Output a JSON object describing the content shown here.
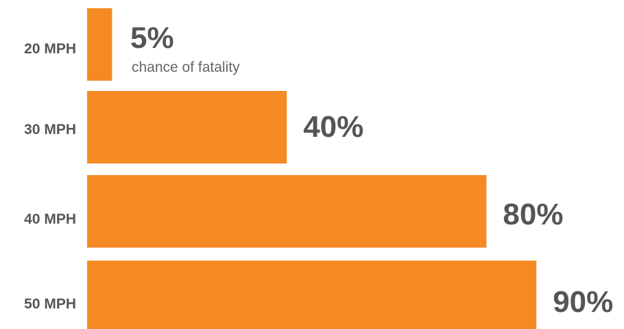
{
  "chart_data": {
    "type": "bar",
    "orientation": "horizontal",
    "categories": [
      "20 MPH",
      "30 MPH",
      "40 MPH",
      "50 MPH"
    ],
    "values": [
      5,
      40,
      80,
      90
    ],
    "value_labels": [
      "5%",
      "40%",
      "80%",
      "90%"
    ],
    "annotations": [
      {
        "category": "20 MPH",
        "text": "chance of fatality"
      }
    ],
    "title": "",
    "xlabel": "",
    "ylabel": "",
    "xlim": [
      0,
      100
    ],
    "grid": false,
    "legend": "none",
    "colors": {
      "bar": "#F58A24",
      "text": "#555555"
    }
  }
}
